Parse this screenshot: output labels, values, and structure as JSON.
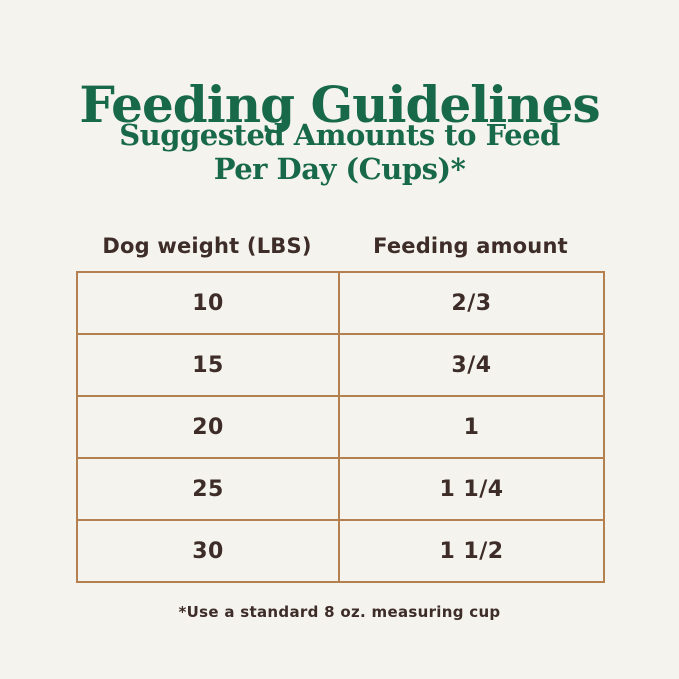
{
  "header": {
    "title": "Feeding Guidelines",
    "subtitle_line1": "Suggested Amounts to Feed",
    "subtitle_line2": "Per Day (Cups)*"
  },
  "table": {
    "columns": [
      "Dog weight (LBS)",
      "Feeding amount"
    ],
    "rows": [
      {
        "weight": "10",
        "amount": "2/3"
      },
      {
        "weight": "15",
        "amount": "3/4"
      },
      {
        "weight": "20",
        "amount": "1"
      },
      {
        "weight": "25",
        "amount": "1 1/4"
      },
      {
        "weight": "30",
        "amount": "1 1/2"
      }
    ]
  },
  "footnote": "*Use a standard 8 oz. measuring cup",
  "colors": {
    "background": "#f4f3ed",
    "heading_green": "#17694a",
    "text_dark": "#3d2c28",
    "table_border": "#b5804f"
  },
  "chart_data": {
    "type": "table",
    "title": "Feeding Guidelines",
    "subtitle": "Suggested Amounts to Feed Per Day (Cups)*",
    "columns": [
      "Dog weight (LBS)",
      "Feeding amount"
    ],
    "rows": [
      [
        "10",
        "2/3"
      ],
      [
        "15",
        "3/4"
      ],
      [
        "20",
        "1"
      ],
      [
        "25",
        "1 1/4"
      ],
      [
        "30",
        "1 1/2"
      ]
    ],
    "footnote": "*Use a standard 8 oz. measuring cup"
  }
}
